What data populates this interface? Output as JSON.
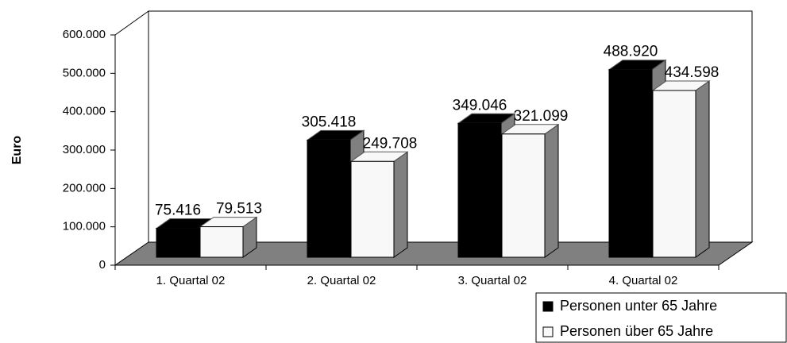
{
  "chart_data": {
    "type": "bar3d",
    "y_label": "Euro",
    "categories": [
      "1. Quartal 02",
      "2. Quartal 02",
      "3. Quartal 02",
      "4. Quartal 02"
    ],
    "series": [
      {
        "name": "Personen unter 65 Jahre",
        "color": "#000000",
        "values": [
          75416,
          305418,
          349046,
          488920
        ],
        "value_labels": [
          "75.416",
          "305.418",
          "349.046",
          "488.920"
        ]
      },
      {
        "name": "Personen über 65 Jahre",
        "color": "#f8f8f8",
        "values": [
          79513,
          249708,
          321099,
          434598
        ],
        "value_labels": [
          "79.513",
          "249.708",
          "321.099",
          "434.598"
        ]
      }
    ],
    "ylim": [
      0,
      600000
    ],
    "yticks": [
      0,
      {
        "value": 100000,
        "label": "100.000"
      },
      {
        "value": 200000,
        "label": "200.000"
      },
      {
        "value": 300000,
        "label": "300.000"
      },
      {
        "value": 400000,
        "label": "400.000"
      },
      {
        "value": 500000,
        "label": "500.000"
      },
      {
        "value": 600000,
        "label": "600.000"
      }
    ],
    "legend": "bottom-right"
  }
}
